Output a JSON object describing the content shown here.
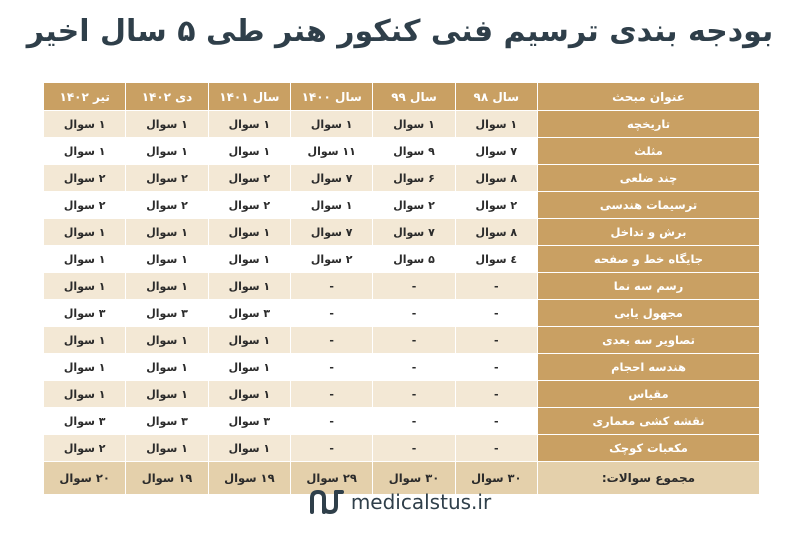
{
  "title": "بودجه بندی ترسیم فنی کنکور هنر طی ۵ سال اخیر",
  "table": {
    "headers": [
      "عنوان مبحث",
      "سال ۹۸",
      "سال ۹۹",
      "سال ۱۴۰۰",
      "سال ۱۴۰۱",
      "دی ۱۴۰۲",
      "تیر ۱۴۰۲"
    ],
    "rows": [
      {
        "topic": "تاریخچه",
        "values": [
          "۱ سوال",
          "۱ سوال",
          "۱ سوال",
          "۱ سوال",
          "۱ سوال",
          "۱ سوال"
        ]
      },
      {
        "topic": "مثلث",
        "values": [
          "۷ سوال",
          "۹ سوال",
          "۱۱ سوال",
          "۱ سوال",
          "۱ سوال",
          "۱ سوال"
        ]
      },
      {
        "topic": "چند ضلعی",
        "values": [
          "۸ سوال",
          "۶ سوال",
          "۷ سوال",
          "۲ سوال",
          "۲ سوال",
          "۲ سوال"
        ]
      },
      {
        "topic": "ترسیمات هندسی",
        "values": [
          "۲ سوال",
          "۲ سوال",
          "۱ سوال",
          "۲ سوال",
          "۲ سوال",
          "۲ سوال"
        ]
      },
      {
        "topic": "برش و تداخل",
        "values": [
          "۸ سوال",
          "۷ سوال",
          "۷ سوال",
          "۱ سوال",
          "۱ سوال",
          "۱ سوال"
        ]
      },
      {
        "topic": "جایگاه خط و صفحه",
        "values": [
          "٤ سوال",
          "۵ سوال",
          "۲ سوال",
          "۱ سوال",
          "۱ سوال",
          "۱ سوال"
        ]
      },
      {
        "topic": "رسم سه نما",
        "values": [
          "-",
          "-",
          "-",
          "۱ سوال",
          "۱ سوال",
          "۱ سوال"
        ]
      },
      {
        "topic": "مجهول یابی",
        "values": [
          "-",
          "-",
          "-",
          "۳ سوال",
          "۳ سوال",
          "۳ سوال"
        ]
      },
      {
        "topic": "تصاویر سه بعدی",
        "values": [
          "-",
          "-",
          "-",
          "۱ سوال",
          "۱ سوال",
          "۱ سوال"
        ]
      },
      {
        "topic": "هندسه احجام",
        "values": [
          "-",
          "-",
          "-",
          "۱ سوال",
          "۱ سوال",
          "۱ سوال"
        ]
      },
      {
        "topic": "مقیاس",
        "values": [
          "-",
          "-",
          "-",
          "۱ سوال",
          "۱ سوال",
          "۱ سوال"
        ]
      },
      {
        "topic": "نقشه کشی معماری",
        "values": [
          "-",
          "-",
          "-",
          "۳ سوال",
          "۳ سوال",
          "۳ سوال"
        ]
      },
      {
        "topic": "مکعبات کوچک",
        "values": [
          "-",
          "-",
          "-",
          "۱ سوال",
          "۱ سوال",
          "۲ سوال"
        ]
      }
    ],
    "total": {
      "topic": "مجموع سوالات:",
      "values": [
        "۳۰ سوال",
        "۳۰ سوال",
        "۲۹ سوال",
        "۱۹ سوال",
        "۱۹ سوال",
        "۲۰ سوال"
      ]
    }
  },
  "footer": {
    "logo_icon": "medicalstus-logo-icon",
    "site": "medicalstus.ir"
  },
  "colors": {
    "title": "#2f3f4a",
    "header_bg": "#c9a063",
    "stripe_bg": "#f3e8d5",
    "total_bg": "#e4d0ab"
  }
}
